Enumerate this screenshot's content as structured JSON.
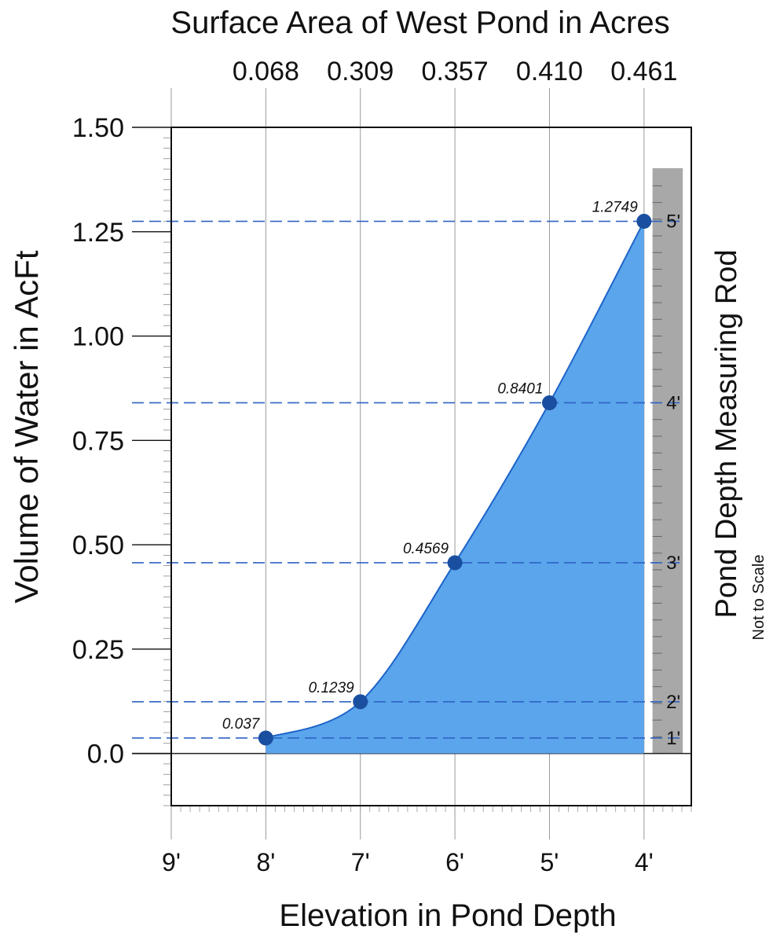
{
  "chart_data": {
    "type": "area",
    "title": "Surface Area of West Pond in Acres",
    "xlabel": "Elevation in Pond Depth",
    "ylabel": "Volume of Water in AcFt",
    "right_label": "Pond Depth Measuring Rod",
    "right_sublabel": "Not to Scale",
    "x_tick_labels": [
      "9'",
      "8'",
      "7'",
      "6'",
      "5'",
      "4'"
    ],
    "x_tick_values": [
      9,
      8,
      7,
      6,
      5,
      4
    ],
    "x_direction": "descending",
    "xlim": [
      9,
      3.5
    ],
    "top_tick_labels": [
      "0.068",
      "0.309",
      "0.357",
      "0.410",
      "0.461"
    ],
    "top_tick_values": [
      8,
      7,
      6,
      5,
      4
    ],
    "y_tick_labels": [
      "0.0",
      "0.25",
      "0.50",
      "0.75",
      "1.00",
      "1.25",
      "1.50"
    ],
    "y_tick_values": [
      0,
      0.25,
      0.5,
      0.75,
      1.0,
      1.25,
      1.5
    ],
    "ylim": [
      -0.125,
      1.5
    ],
    "points": [
      {
        "x": 8,
        "y": 0.037,
        "label": "0.037",
        "rod_label": "1'"
      },
      {
        "x": 7,
        "y": 0.1239,
        "label": "0.1239",
        "rod_label": "2'"
      },
      {
        "x": 6,
        "y": 0.4569,
        "label": "0.4569",
        "rod_label": "3'"
      },
      {
        "x": 5,
        "y": 0.8401,
        "label": "0.8401",
        "rod_label": "4'"
      },
      {
        "x": 4,
        "y": 1.2749,
        "label": "1.2749",
        "rod_label": "5'"
      }
    ],
    "fill_color": "#5aa5ec",
    "line_color": "#1e64c8",
    "point_color": "#1a4fa0",
    "rod_color": "#a8a8a8",
    "grid": "vertical"
  }
}
